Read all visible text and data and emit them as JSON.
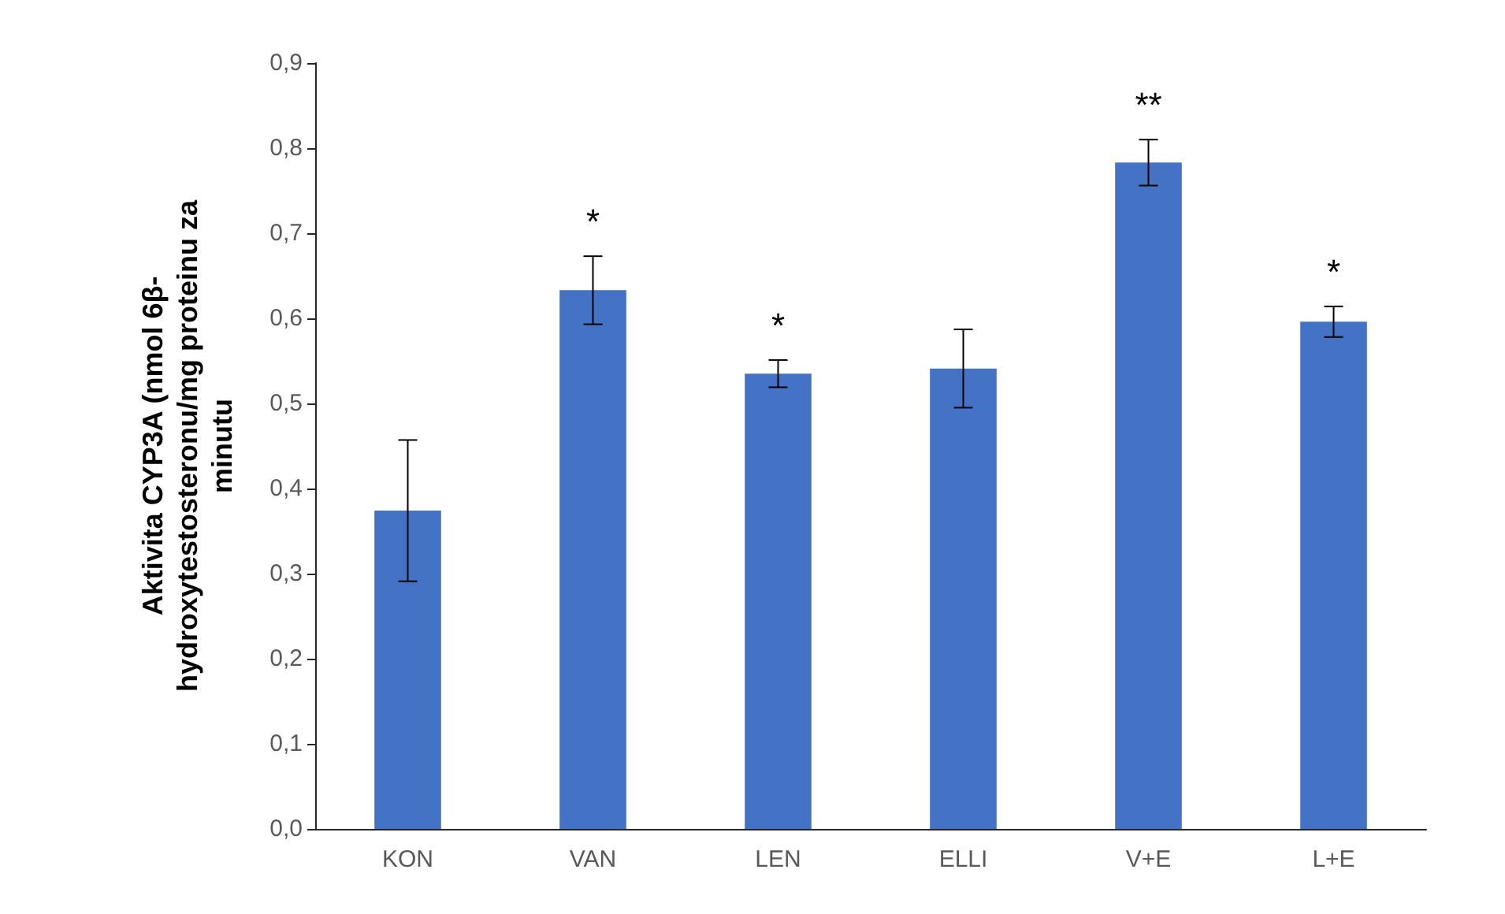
{
  "chart_data": {
    "type": "bar",
    "ylabel": "Aktivita CYP3A (nmol 6β-hydroxytestosteronu/mg proteinu za minutu",
    "categories": [
      "KON",
      "VAN",
      "LEN",
      "ELLI",
      "V+E",
      "L+E"
    ],
    "values": [
      0.374,
      0.633,
      0.535,
      0.541,
      0.783,
      0.596
    ],
    "errors": [
      0.083,
      0.04,
      0.016,
      0.046,
      0.027,
      0.018
    ],
    "color": "#4472c4",
    "ylim": [
      0,
      0.9
    ],
    "yticks": [
      {
        "value": 0,
        "label": "0,0"
      },
      {
        "value": 0.1,
        "label": "0,1"
      },
      {
        "value": 0.2,
        "label": "0,2"
      },
      {
        "value": 0.3,
        "label": "0,3"
      },
      {
        "value": 0.4,
        "label": "0,4"
      },
      {
        "value": 0.5,
        "label": "0,5"
      },
      {
        "value": 0.6,
        "label": "0,6"
      },
      {
        "value": 0.7,
        "label": "0,7"
      },
      {
        "value": 0.8,
        "label": "0,8"
      },
      {
        "value": 0.9,
        "label": "0,9"
      }
    ],
    "value_labels": [
      null,
      "*",
      "*",
      null,
      "**",
      "*"
    ],
    "grid": false
  }
}
